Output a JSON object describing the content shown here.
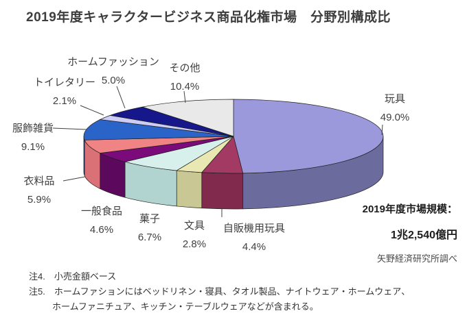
{
  "title": "2019年度キャラクタービジネス商品化権市場　分野別構成比",
  "chart_data": {
    "type": "pie",
    "style": "3d-exploded-none",
    "title": "2019年度キャラクタービジネス商品化権市場　分野別構成比",
    "unit": "%",
    "start_angle": "12時位置から時計回り",
    "slices": [
      {
        "label": "玩具",
        "value": 49.0,
        "color": "#9b99dc",
        "side_color": "#6b6b9e"
      },
      {
        "label": "自販機用玩具",
        "value": 4.4,
        "color": "#a23a64",
        "side_color": "#82294e"
      },
      {
        "label": "文具",
        "value": 2.8,
        "color": "#e9e8b2",
        "side_color": "#c9c794"
      },
      {
        "label": "菓子",
        "value": 6.7,
        "color": "#d8f0ec",
        "side_color": "#b2d4d0"
      },
      {
        "label": "一般食品",
        "value": 4.6,
        "color": "#7b0a7b",
        "side_color": "#5c085c"
      },
      {
        "label": "衣料品",
        "value": 5.9,
        "color": "#f08484",
        "side_color": "#da7176"
      },
      {
        "label": "服飾雑貨",
        "value": 9.1,
        "color": "#2b64c8",
        "side_color": "#1e4fa0"
      },
      {
        "label": "トイレタリー",
        "value": 2.1,
        "color": "#ccccf4",
        "side_color": "#a8a8d4"
      },
      {
        "label": "ホームファッション",
        "value": 5.0,
        "color": "#17178c",
        "side_color": "#10106b"
      },
      {
        "label": "その他",
        "value": 10.4,
        "color": "#e9e9e9",
        "side_color": "#c4c4c4"
      }
    ]
  },
  "annotations": {
    "market_size_label": "2019年度市場規模：",
    "market_size_value": "1兆2,540億円",
    "source": "矢野経済研究所調べ"
  },
  "notes": {
    "note4": "注4.　小売金額ベース",
    "note5_line1": "注5.　ホームファションにはベッドリネン・寝具、タオル製品、ナイトウェア・ホームウェア、",
    "note5_line2": "ホームファニチュア、キッチン・テーブルウェアなどが含まれる。"
  }
}
